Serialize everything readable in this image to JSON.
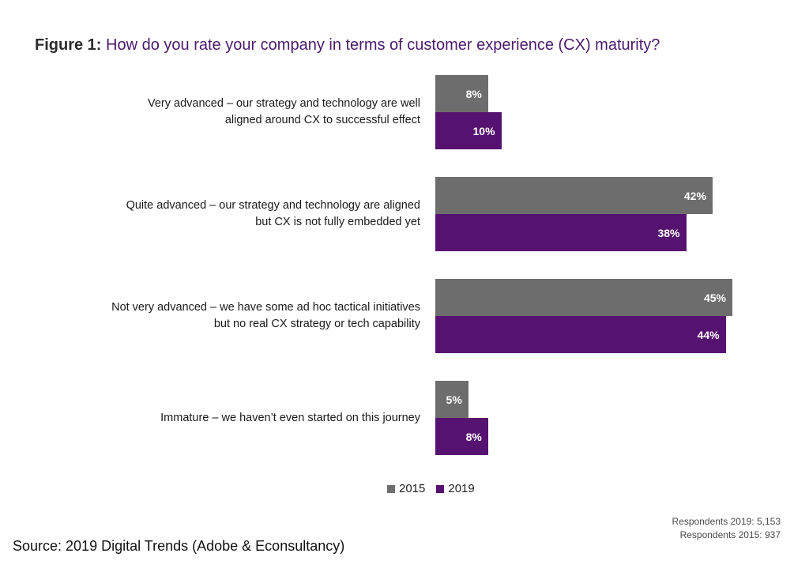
{
  "title": {
    "prefix": "Figure 1:",
    "question": "How do you rate your company in terms of customer experience (CX) maturity?"
  },
  "chart_data": {
    "type": "bar",
    "orientation": "horizontal",
    "categories": [
      [
        "Very advanced – our strategy and technology are well",
        "aligned around CX to successful effect"
      ],
      [
        "Quite advanced – our strategy and technology are aligned",
        "but CX is not fully embedded yet"
      ],
      [
        "Not very advanced – we have some ad hoc tactical initiatives",
        "but no real CX strategy or tech capability"
      ],
      [
        "Immature – we haven’t even started on this journey"
      ]
    ],
    "series": [
      {
        "name": "2015",
        "color": "#6d6d6d",
        "values": [
          8,
          42,
          45,
          5
        ]
      },
      {
        "name": "2019",
        "color": "#561270",
        "values": [
          10,
          38,
          44,
          8
        ]
      }
    ],
    "value_suffix": "%",
    "xlim": [
      0,
      45
    ],
    "grid": false,
    "legend_position": "bottom"
  },
  "respondents": [
    "Respondents 2019: 5,153",
    "Respondents 2015: 937"
  ],
  "source": "Source: 2019 Digital Trends (Adobe & Econsultancy)"
}
